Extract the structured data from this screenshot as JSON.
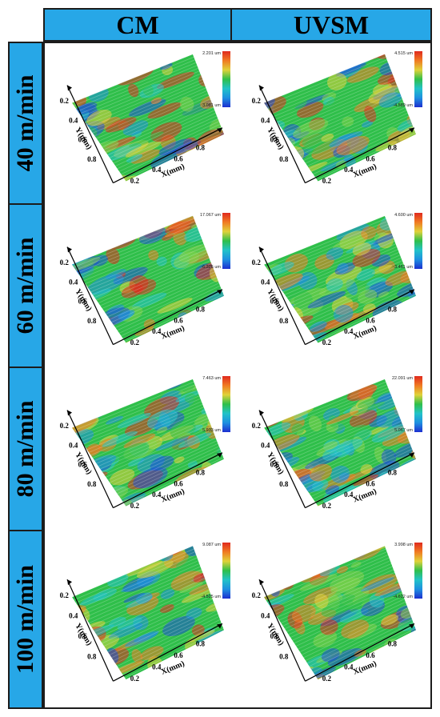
{
  "header": {
    "col1": "CM",
    "col2": "UVSM"
  },
  "colors": {
    "accent": "#27a7e7",
    "border": "#1c1c1c"
  },
  "rows": [
    {
      "label": "40 m/min",
      "cm": {
        "cb_max": "2.201 um",
        "cb_min": "3.081 um"
      },
      "uvsm": {
        "cb_max": "4.515 um",
        "cb_min": "-4.589 um"
      }
    },
    {
      "label": "60 m/min",
      "cm": {
        "cb_max": "17.067 um",
        "cb_min": "-6.326 um"
      },
      "uvsm": {
        "cb_max": "4.600 um",
        "cb_min": "-3.461 um"
      }
    },
    {
      "label": "80 m/min",
      "cm": {
        "cb_max": "7.463 um",
        "cb_min": "5.933 um"
      },
      "uvsm": {
        "cb_max": "22.091 um",
        "cb_min": "5.067 um"
      }
    },
    {
      "label": "100 m/min",
      "cm": {
        "cb_max": "9.087 um",
        "cb_min": "-4.525 um"
      },
      "uvsm": {
        "cb_max": "3.998 um",
        "cb_min": "-4.622 um"
      }
    }
  ],
  "axes": {
    "x_label": "X(mm)",
    "y_label": "Y(mm)",
    "x_ticks": [
      "0.2",
      "0.4",
      "0.6",
      "0.8"
    ],
    "y_ticks": [
      "0.2",
      "0.4",
      "0.6",
      "0.8"
    ]
  }
}
